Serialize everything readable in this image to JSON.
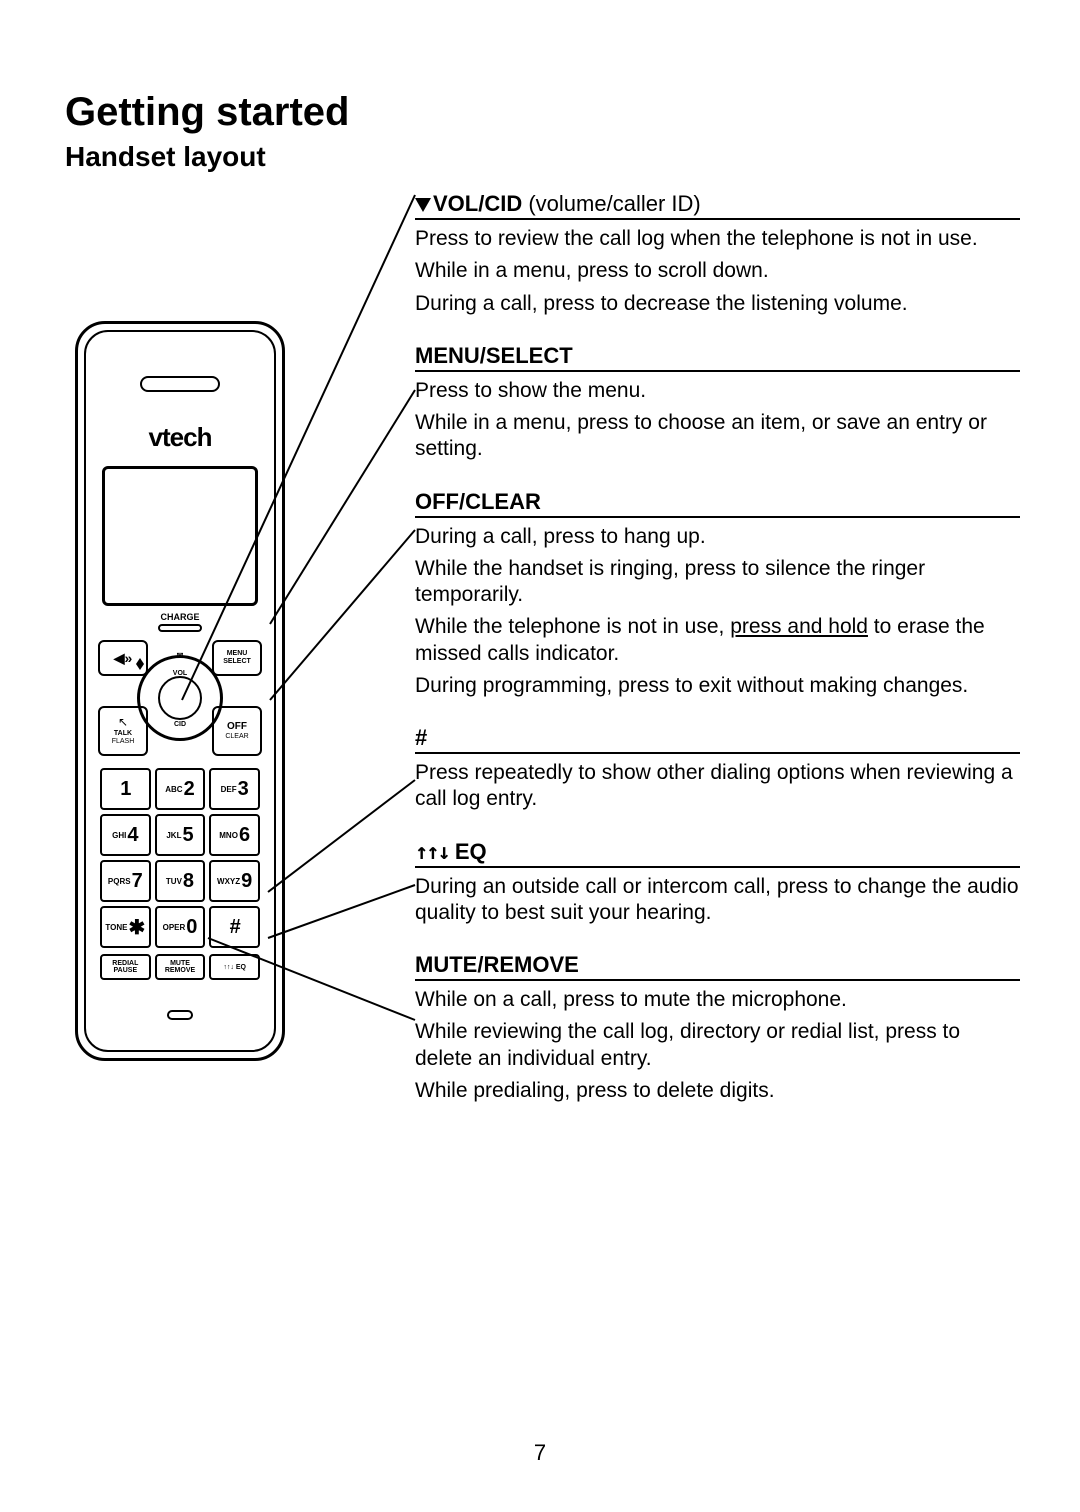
{
  "page": {
    "title": "Getting started",
    "subtitle": "Handset layout",
    "number": "7"
  },
  "handset": {
    "brand": "vtech",
    "charge": "CHARGE",
    "nav": {
      "dir_top": "✉",
      "vol": "VOL",
      "cid": "CID",
      "speaker": "◀»",
      "menu1": "MENU",
      "menu2": "SELECT",
      "talk1": "TALK",
      "talk2": "FLASH",
      "off1": "OFF",
      "off2": "CLEAR"
    },
    "keys": [
      {
        "sub": "",
        "num": "1"
      },
      {
        "sub": "ABC",
        "num": "2"
      },
      {
        "sub": "DEF",
        "num": "3"
      },
      {
        "sub": "GHI",
        "num": "4"
      },
      {
        "sub": "JKL",
        "num": "5"
      },
      {
        "sub": "MNO",
        "num": "6"
      },
      {
        "sub": "PQRS",
        "num": "7"
      },
      {
        "sub": "TUV",
        "num": "8"
      },
      {
        "sub": "WXYZ",
        "num": "9"
      },
      {
        "sub": "TONE",
        "num": "✱"
      },
      {
        "sub": "OPER",
        "num": "0"
      },
      {
        "sub": "",
        "num": "#"
      }
    ],
    "bottom": [
      {
        "l1": "REDIAL",
        "l2": "PAUSE"
      },
      {
        "l1": "MUTE",
        "l2": "REMOVE"
      },
      {
        "l1": "↑↑↓ EQ",
        "l2": ""
      }
    ]
  },
  "sections": {
    "volcid": {
      "head_bold": "VOL/CID",
      "head_light": " (volume/caller ID)",
      "p1": "Press to review the call log when the telephone is not in use.",
      "p2": "While in a menu, press to scroll down.",
      "p3": "During a call, press to decrease the listening volume."
    },
    "menuselect": {
      "head": "MENU/SELECT",
      "p1": "Press to show the menu.",
      "p2": "While in a menu, press to choose an item, or save an entry or setting."
    },
    "offclear": {
      "head": "OFF/CLEAR",
      "p1": "During a call, press to hang up.",
      "p2": "While the handset is ringing, press to silence the ringer temporarily.",
      "p3a": "While the telephone is not in use, ",
      "p3b": "press and hold",
      "p3c": " to erase the missed calls indicator.",
      "p4": "During programming, press to exit without making changes."
    },
    "pound": {
      "head": "#",
      "p1": "Press repeatedly to show other dialing options when reviewing a call log entry."
    },
    "eq": {
      "glyph": "↑↑↓",
      "head": " EQ",
      "p1": "During an outside call or intercom call, press to change the audio quality to best suit your hearing."
    },
    "mute": {
      "head": "MUTE/REMOVE",
      "p1": "While on a call, press to mute the microphone.",
      "p2": "While reviewing the call log, directory or redial list, press to delete an individual entry.",
      "p3": "While predialing, press to delete digits."
    }
  }
}
